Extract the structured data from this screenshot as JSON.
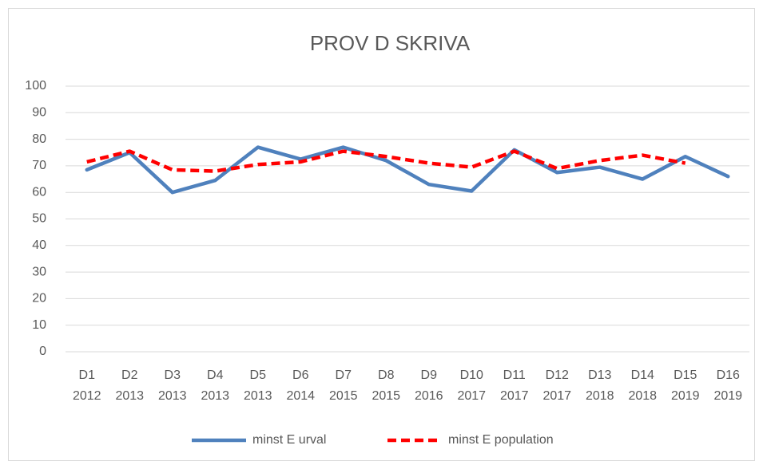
{
  "chart_data": {
    "type": "line",
    "title": "PROV D SKRIVA",
    "categories": [
      [
        "D1",
        "2012"
      ],
      [
        "D2",
        "2013"
      ],
      [
        "D3",
        "2013"
      ],
      [
        "D4",
        "2013"
      ],
      [
        "D5",
        "2013"
      ],
      [
        "D6",
        "2014"
      ],
      [
        "D7",
        "2015"
      ],
      [
        "D8",
        "2015"
      ],
      [
        "D9",
        "2016"
      ],
      [
        "D10",
        "2017"
      ],
      [
        "D11",
        "2017"
      ],
      [
        "D12",
        "2017"
      ],
      [
        "D13",
        "2018"
      ],
      [
        "D14",
        "2018"
      ],
      [
        "D15",
        "2019"
      ],
      [
        "D16",
        "2019"
      ]
    ],
    "series": [
      {
        "name": "minst E urval",
        "color": "#4f81bd",
        "dashed": false,
        "values": [
          68.5,
          75,
          60,
          64.5,
          77,
          72.5,
          77,
          72,
          63,
          60.5,
          76,
          67.5,
          69.5,
          65,
          73.5,
          66
        ]
      },
      {
        "name": "minst E population",
        "color": "#ff0000",
        "dashed": true,
        "values": [
          71.5,
          75.5,
          68.5,
          68,
          70.5,
          71.5,
          75.5,
          73.5,
          71,
          69.5,
          75.5,
          69,
          72,
          74,
          71,
          null
        ]
      }
    ],
    "ylim": [
      0,
      100
    ],
    "yticks": [
      0,
      10,
      20,
      30,
      40,
      50,
      60,
      70,
      80,
      90,
      100
    ],
    "grid": true,
    "legend": "bottom"
  }
}
